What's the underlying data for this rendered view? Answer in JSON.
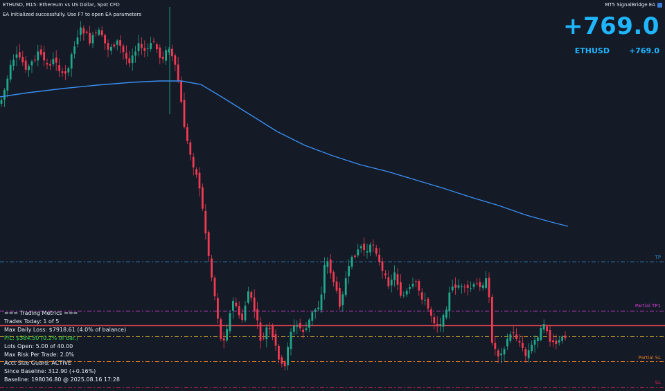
{
  "header": {
    "symbol_info": "ETHUSD, M15:  Ethereum vs US Dollar, Spot CFD",
    "ea_message": "EA initialized successfully. Use F7 to open EA parameters",
    "ea_name": "MT5 SignalBridge EA",
    "ea_icon": "expert-advisor-icon"
  },
  "profit": {
    "total": "+769.0",
    "symbol": "ETHUSD",
    "symbol_profit": "+769.0",
    "color": "#1fb6ff"
  },
  "levels": {
    "tp": {
      "label": "TP",
      "color": "#2e86c1"
    },
    "partial_tp1": {
      "label": "Partial TP1",
      "color": "#d63fd6"
    },
    "partial_sl": {
      "label": "Partial SL",
      "color": "#e67e22"
    },
    "sl": {
      "label": "SL",
      "color": "#e0245e"
    }
  },
  "metrics": {
    "title": "=== Trading Metrics ===",
    "trades_today": "Trades Today: 1 of 5",
    "max_daily_loss": "Max Daily Loss: $7918.61 (4.0% of balance)",
    "pnl": "P/L: $384.50 (0.2% of bal.)",
    "lots_open": "Lots Open: 5.00 of 40.00",
    "max_risk": "Max Risk Per Trade: 2.0%",
    "acct_guard": "Acct Size Guard: ACTIVE",
    "since_baseline": "Since Baseline: 312.90 (+0.16%)",
    "baseline": "Baseline: 198036.80 @ 2025.08.16 17:28",
    "pnl_color": "#3ddc4b"
  },
  "colors": {
    "background": "#141a26",
    "bull": "#1fa88a",
    "bear": "#f23a52",
    "ma": "#3a8ef0"
  }
}
